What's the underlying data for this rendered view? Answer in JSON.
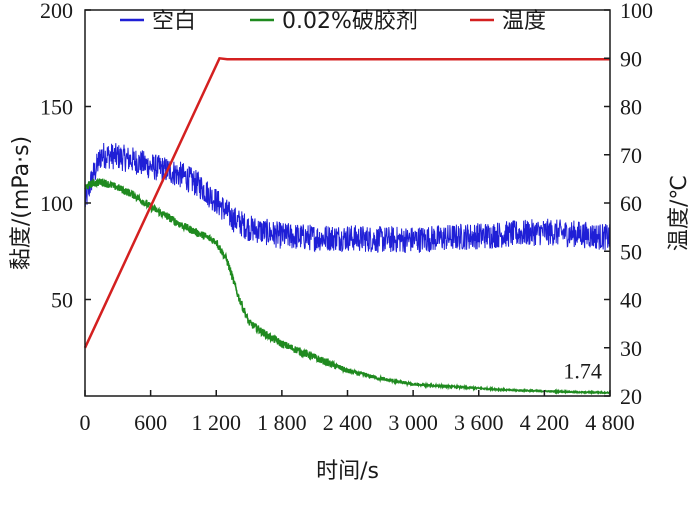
{
  "chart_data": {
    "type": "line",
    "xlabel": "时间/s",
    "ylabel_left": "黏度/(mPa·s)",
    "ylabel_right": "温度/℃",
    "xlim": [
      0,
      4800
    ],
    "ylim_left": [
      0,
      200
    ],
    "ylim_right": [
      20,
      100
    ],
    "x_ticks": [
      0,
      600,
      1200,
      1800,
      2400,
      3000,
      3600,
      4200,
      4800
    ],
    "x_tick_labels": [
      "0",
      "600",
      "1 200",
      "1 800",
      "2 400",
      "3 000",
      "3 600",
      "4 200",
      "4 800"
    ],
    "y_left_ticks": [
      50,
      100,
      150,
      200
    ],
    "y_left_tick_labels": [
      "50",
      "100",
      "150",
      "200"
    ],
    "y_right_ticks": [
      20,
      30,
      40,
      50,
      60,
      70,
      80,
      90,
      100
    ],
    "y_right_tick_labels": [
      "20",
      "30",
      "40",
      "50",
      "60",
      "70",
      "80",
      "90",
      "100"
    ],
    "legend_placement": "top",
    "grid": false,
    "series": [
      {
        "name": "空白",
        "axis": "left",
        "color": "#1f1fd6",
        "noise": 7,
        "x": [
          0,
          60,
          150,
          300,
          450,
          600,
          750,
          900,
          1050,
          1200,
          1350,
          1500,
          1650,
          1800,
          2100,
          2400,
          2700,
          3000,
          3300,
          3600,
          3900,
          4200,
          4500,
          4800
        ],
        "y": [
          100,
          112,
          125,
          124,
          122,
          119,
          117,
          114,
          109,
          101,
          92,
          87,
          85,
          83,
          82,
          82,
          81,
          81,
          82,
          83,
          84,
          85,
          84,
          82
        ]
      },
      {
        "name": "0.02%破胶剂",
        "axis": "left",
        "color": "#1f8a1f",
        "noise": 2,
        "x": [
          0,
          60,
          150,
          300,
          450,
          600,
          750,
          900,
          1050,
          1200,
          1300,
          1400,
          1500,
          1650,
          1800,
          2100,
          2400,
          2700,
          3000,
          3300,
          3600,
          3900,
          4200,
          4500,
          4800
        ],
        "y": [
          108,
          110,
          111,
          108,
          104,
          98,
          93,
          88,
          84,
          80,
          70,
          52,
          38,
          32,
          27,
          20,
          13,
          9,
          6,
          5,
          4,
          3,
          2.5,
          2,
          1.74
        ]
      },
      {
        "name": "温度",
        "axis": "right",
        "color": "#d42020",
        "noise": 0,
        "x": [
          0,
          1230,
          1300,
          4800
        ],
        "y": [
          30,
          90,
          89.8,
          89.8
        ]
      }
    ],
    "annotations": [
      {
        "text": "1.74",
        "x": 4550,
        "y": 9
      }
    ]
  }
}
